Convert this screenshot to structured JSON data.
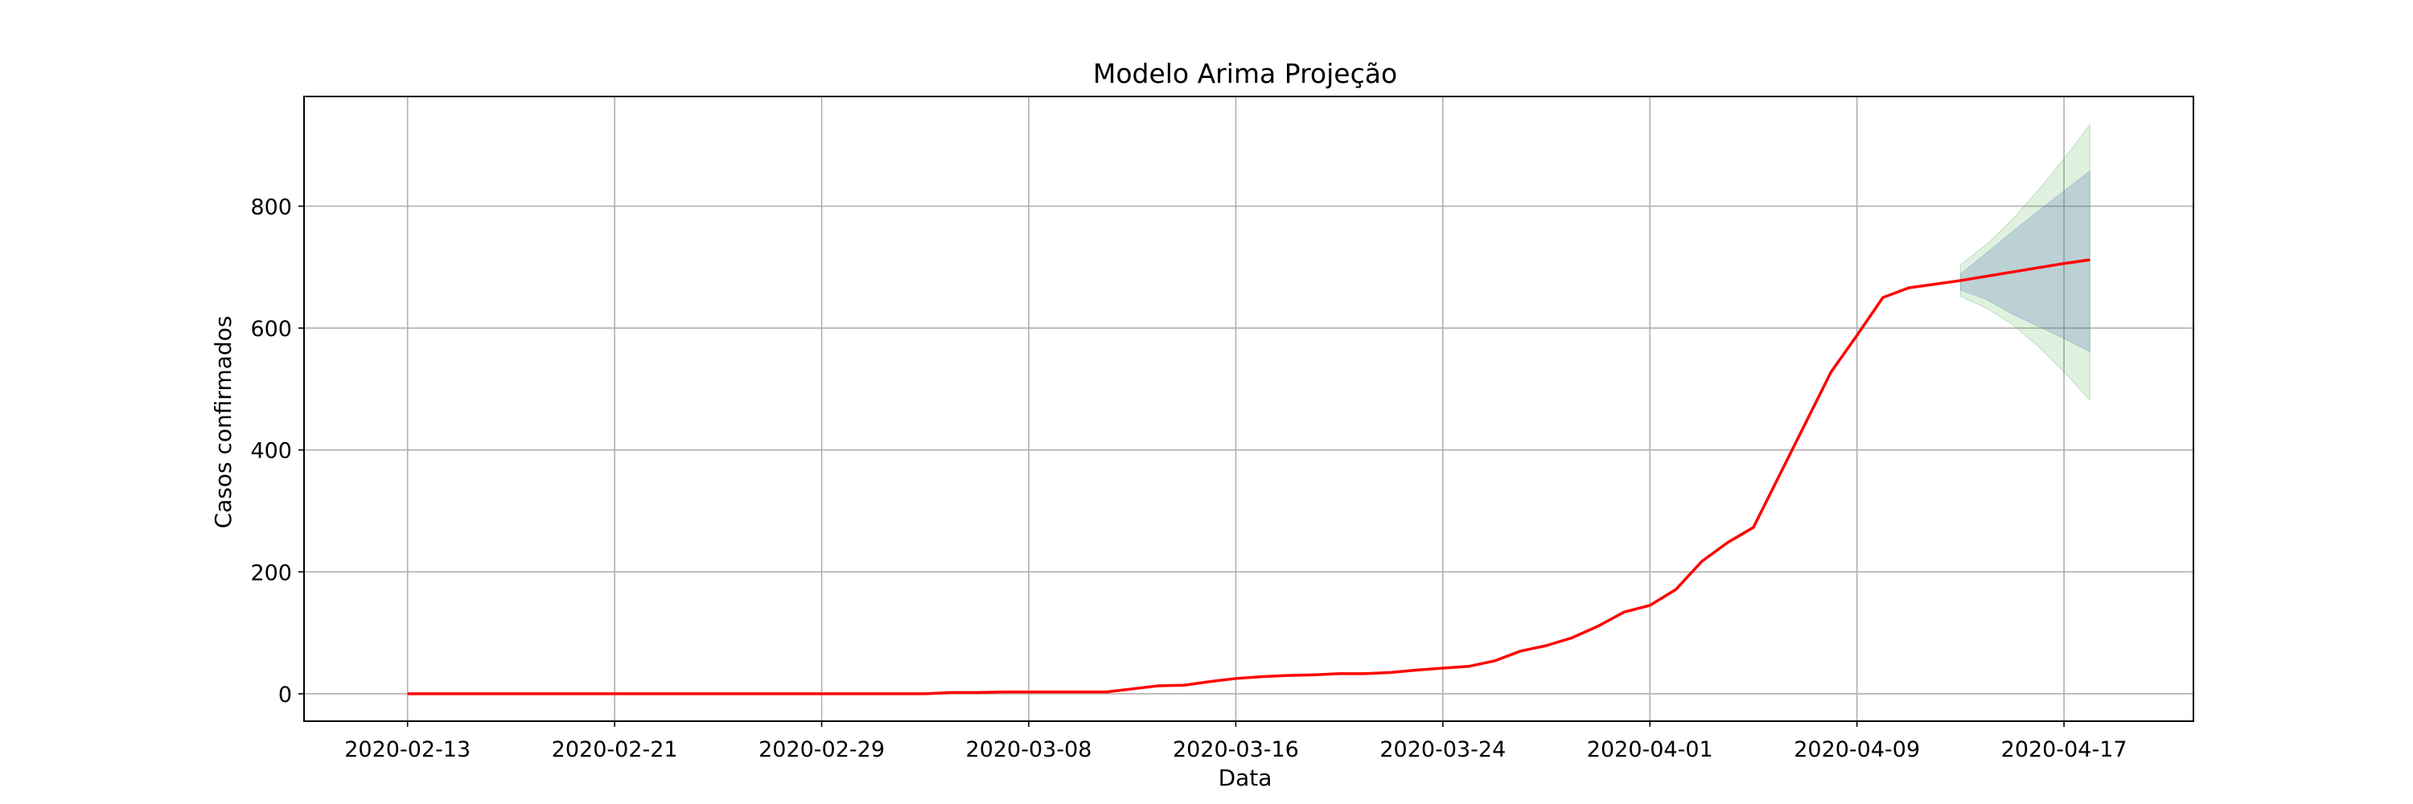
{
  "chart_data": {
    "type": "line",
    "title": "Modelo Arima Projeção",
    "xlabel": "Data",
    "ylabel": "Casos confirmados",
    "grid": true,
    "xlim": [
      "2020-02-09",
      "2020-04-22"
    ],
    "ylim": [
      -45,
      980
    ],
    "x_ticks": [
      "2020-02-13",
      "2020-02-21",
      "2020-02-29",
      "2020-03-08",
      "2020-03-16",
      "2020-03-24",
      "2020-04-01",
      "2020-04-09",
      "2020-04-17"
    ],
    "y_ticks": [
      0,
      200,
      400,
      600,
      800
    ],
    "colors": {
      "line": "#ff0000",
      "band_outer": "#2ca02c",
      "band_inner": "#4c72b0"
    },
    "series": [
      {
        "kind": "line",
        "x": [
          "2020-02-13",
          "2020-02-14",
          "2020-02-15",
          "2020-02-16",
          "2020-02-17",
          "2020-02-18",
          "2020-02-19",
          "2020-02-20",
          "2020-02-21",
          "2020-02-22",
          "2020-02-23",
          "2020-02-24",
          "2020-02-25",
          "2020-02-26",
          "2020-02-27",
          "2020-02-28",
          "2020-02-29",
          "2020-03-01",
          "2020-03-02",
          "2020-03-03",
          "2020-03-04",
          "2020-03-05",
          "2020-03-06",
          "2020-03-07",
          "2020-03-08",
          "2020-03-09",
          "2020-03-10",
          "2020-03-11",
          "2020-03-12",
          "2020-03-13",
          "2020-03-14",
          "2020-03-15",
          "2020-03-16",
          "2020-03-17",
          "2020-03-18",
          "2020-03-19",
          "2020-03-20",
          "2020-03-21",
          "2020-03-22",
          "2020-03-23",
          "2020-03-24",
          "2020-03-25",
          "2020-03-26",
          "2020-03-27",
          "2020-03-28",
          "2020-03-29",
          "2020-03-30",
          "2020-03-31",
          "2020-04-01",
          "2020-04-02",
          "2020-04-03",
          "2020-04-04",
          "2020-04-05",
          "2020-04-06",
          "2020-04-07",
          "2020-04-08",
          "2020-04-09",
          "2020-04-10",
          "2020-04-11",
          "2020-04-12",
          "2020-04-13",
          "2020-04-14",
          "2020-04-15",
          "2020-04-16",
          "2020-04-17",
          "2020-04-18"
        ],
        "values": [
          0,
          0,
          0,
          0,
          0,
          0,
          0,
          0,
          0,
          0,
          0,
          0,
          0,
          0,
          0,
          0,
          0,
          0,
          0,
          0,
          0,
          2,
          2,
          3,
          3,
          3,
          3,
          3,
          8,
          13,
          14,
          20,
          25,
          28,
          30,
          31,
          33,
          33,
          35,
          39,
          42,
          45,
          54,
          70,
          79,
          92,
          111,
          134,
          145,
          171,
          217,
          248,
          273,
          358,
          443,
          528,
          588,
          650,
          666,
          672,
          678,
          685,
          692,
          699,
          706,
          712
        ]
      },
      {
        "kind": "band",
        "x": [
          "2020-04-13",
          "2020-04-14",
          "2020-04-15",
          "2020-04-16",
          "2020-04-17",
          "2020-04-18"
        ],
        "lower": [
          652,
          633,
          606,
          570,
          528,
          482
        ],
        "upper": [
          704,
          737,
          778,
          826,
          878,
          934
        ]
      },
      {
        "kind": "band",
        "x": [
          "2020-04-13",
          "2020-04-14",
          "2020-04-15",
          "2020-04-16",
          "2020-04-17",
          "2020-04-18"
        ],
        "lower": [
          662,
          647,
          623,
          603,
          583,
          561
        ],
        "upper": [
          689,
          723,
          758,
          792,
          825,
          858
        ]
      }
    ]
  }
}
